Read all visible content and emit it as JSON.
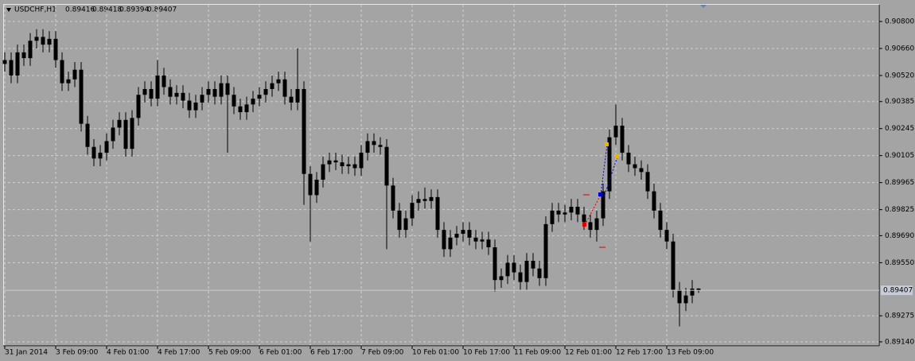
{
  "chart_data": {
    "type": "candlestick",
    "title": "USDCHF,H1",
    "header_values": [
      0.89416,
      0.89418,
      0.89394,
      0.89407
    ],
    "color": "#000000",
    "grid": true,
    "price_line": {
      "value": 0.89407,
      "label": "0.89407"
    },
    "xlim": [
      -0.25,
      137.375
    ],
    "xticks": [
      {
        "value": 0,
        "label": "31 Jan 2014"
      },
      {
        "value": 8,
        "label": "3 Feb 09:00"
      },
      {
        "value": 16,
        "label": "4 Feb 01:00"
      },
      {
        "value": 24,
        "label": "4 Feb 17:00"
      },
      {
        "value": 32,
        "label": "5 Feb 09:00"
      },
      {
        "value": 40,
        "label": "6 Feb 01:00"
      },
      {
        "value": 48,
        "label": "6 Feb 17:00"
      },
      {
        "value": 56,
        "label": "7 Feb 09:00"
      },
      {
        "value": 64,
        "label": "10 Feb 01:00"
      },
      {
        "value": 72,
        "label": "10 Feb 17:00"
      },
      {
        "value": 80,
        "label": "11 Feb 09:00"
      },
      {
        "value": 88,
        "label": "12 Feb 01:00"
      },
      {
        "value": 96,
        "label": "12 Feb 17:00"
      },
      {
        "value": 104,
        "label": "13 Feb 09:00"
      }
    ],
    "ylim": [
      0.89119,
      0.908865
    ],
    "yticks": [
      {
        "value": 0.908,
        "label": "0.90800"
      },
      {
        "value": 0.9066,
        "label": "0.90660"
      },
      {
        "value": 0.9052,
        "label": "0.90520"
      },
      {
        "value": 0.90385,
        "label": "0.90385"
      },
      {
        "value": 0.90245,
        "label": "0.90245"
      },
      {
        "value": 0.90105,
        "label": "0.90105"
      },
      {
        "value": 0.89965,
        "label": "0.89965"
      },
      {
        "value": 0.89825,
        "label": "0.89825"
      },
      {
        "value": 0.8969,
        "label": "0.89690"
      },
      {
        "value": 0.8955,
        "label": "0.89550"
      },
      {
        "value": 0.89275,
        "label": "0.89275"
      },
      {
        "value": 0.8914,
        "label": "0.89140"
      }
    ],
    "open": [
      0.9058,
      0.906,
      0.9052,
      0.9064,
      0.9061,
      0.907,
      0.9072,
      0.9068,
      0.9071,
      0.906,
      0.9048,
      0.905,
      0.9055,
      0.9027,
      0.9015,
      0.9009,
      0.9012,
      0.9018,
      0.9025,
      0.9029,
      0.9014,
      0.903,
      0.9042,
      0.9045,
      0.904,
      0.9052,
      0.9046,
      0.9041,
      0.9043,
      0.9039,
      0.9034,
      0.9038,
      0.9042,
      0.9045,
      0.9041,
      0.9048,
      0.9042,
      0.9036,
      0.9033,
      0.9037,
      0.904,
      0.9042,
      0.9045,
      0.9048,
      0.905,
      0.9041,
      0.9038,
      0.9045,
      0.9001,
      0.899,
      0.8998,
      0.9006,
      0.9008,
      0.9007,
      0.9005,
      0.9006,
      0.9004,
      0.9012,
      0.9018,
      0.9016,
      0.9015,
      0.8995,
      0.8982,
      0.8972,
      0.8978,
      0.8986,
      0.8988,
      0.8987,
      0.8989,
      0.8972,
      0.8962,
      0.8968,
      0.897,
      0.8972,
      0.8968,
      0.8966,
      0.8967,
      0.8963,
      0.8946,
      0.8948,
      0.8955,
      0.895,
      0.8945,
      0.8956,
      0.8952,
      0.8947,
      0.8975,
      0.8982,
      0.898,
      0.8981,
      0.8984,
      0.898,
      0.8976,
      0.8972,
      0.8978,
      0.8992,
      0.902,
      0.9026,
      0.9012,
      0.9006,
      0.9004,
      0.9002,
      0.8992,
      0.8982,
      0.8972,
      0.8966,
      0.8941,
      0.8934,
      0.8938,
      0.89416
    ],
    "high": [
      0.9064,
      0.9064,
      0.9068,
      0.9068,
      0.9074,
      0.9076,
      0.9076,
      0.9075,
      0.9075,
      0.9064,
      0.9054,
      0.9059,
      0.9059,
      0.9031,
      0.9019,
      0.9016,
      0.9022,
      0.9029,
      0.9033,
      0.9033,
      0.9034,
      0.9046,
      0.9049,
      0.9049,
      0.906,
      0.9056,
      0.905,
      0.9047,
      0.9047,
      0.9043,
      0.9042,
      0.9046,
      0.9049,
      0.9049,
      0.9052,
      0.9052,
      0.9046,
      0.904,
      0.9041,
      0.9044,
      0.9046,
      0.9049,
      0.9052,
      0.9054,
      0.9054,
      0.9045,
      0.9066,
      0.9049,
      0.9005,
      0.9002,
      0.901,
      0.9012,
      0.9012,
      0.9011,
      0.901,
      0.901,
      0.9016,
      0.9022,
      0.9022,
      0.902,
      0.9019,
      0.8999,
      0.8986,
      0.8982,
      0.899,
      0.8992,
      0.8994,
      0.8993,
      0.8993,
      0.8976,
      0.8972,
      0.8974,
      0.8976,
      0.8976,
      0.8972,
      0.8971,
      0.8971,
      0.8967,
      0.8952,
      0.8959,
      0.8959,
      0.8954,
      0.896,
      0.896,
      0.8956,
      0.8979,
      0.8986,
      0.8986,
      0.8985,
      0.8988,
      0.8988,
      0.8984,
      0.898,
      0.8982,
      0.8996,
      0.9024,
      0.9037,
      0.903,
      0.9016,
      0.901,
      0.9008,
      0.9006,
      0.8996,
      0.8986,
      0.8976,
      0.897,
      0.8945,
      0.8942,
      0.8946,
      0.89418
    ],
    "low": [
      0.9054,
      0.9048,
      0.9048,
      0.9057,
      0.9057,
      0.9066,
      0.9064,
      0.9064,
      0.9056,
      0.9044,
      0.9044,
      0.9046,
      0.9023,
      0.9011,
      0.9005,
      0.9005,
      0.9008,
      0.9014,
      0.9021,
      0.901,
      0.901,
      0.9026,
      0.9038,
      0.9036,
      0.9036,
      0.9042,
      0.9037,
      0.9037,
      0.9035,
      0.903,
      0.903,
      0.9034,
      0.9038,
      0.9037,
      0.9037,
      0.9012,
      0.9032,
      0.9029,
      0.9029,
      0.9033,
      0.9036,
      0.9038,
      0.9041,
      0.9044,
      0.9037,
      0.9034,
      0.9034,
      0.8985,
      0.8966,
      0.8986,
      0.8994,
      0.9002,
      0.9003,
      0.9001,
      0.9001,
      0.9,
      0.9,
      0.9008,
      0.9012,
      0.9011,
      0.8962,
      0.8978,
      0.8968,
      0.8968,
      0.8974,
      0.8982,
      0.8983,
      0.8983,
      0.8968,
      0.8958,
      0.8958,
      0.8964,
      0.8966,
      0.8964,
      0.8962,
      0.8962,
      0.8959,
      0.894,
      0.8942,
      0.8944,
      0.8946,
      0.8941,
      0.8941,
      0.8948,
      0.8943,
      0.8943,
      0.8971,
      0.8976,
      0.8976,
      0.8977,
      0.8976,
      0.8972,
      0.8968,
      0.8966,
      0.8974,
      0.8988,
      0.9016,
      0.9008,
      0.9002,
      0.9,
      0.8998,
      0.8988,
      0.8978,
      0.8968,
      0.8962,
      0.8937,
      0.8922,
      0.893,
      0.8934,
      0.89394
    ],
    "close": [
      0.906,
      0.9052,
      0.9064,
      0.9061,
      0.907,
      0.9072,
      0.9068,
      0.9071,
      0.906,
      0.9048,
      0.905,
      0.9055,
      0.9027,
      0.9015,
      0.9009,
      0.9012,
      0.9018,
      0.9025,
      0.9029,
      0.9014,
      0.903,
      0.9042,
      0.9045,
      0.904,
      0.9052,
      0.9046,
      0.9041,
      0.9043,
      0.9039,
      0.9034,
      0.9038,
      0.9042,
      0.9045,
      0.9041,
      0.9048,
      0.9042,
      0.9036,
      0.9033,
      0.9037,
      0.904,
      0.9042,
      0.9045,
      0.9048,
      0.905,
      0.9041,
      0.9038,
      0.9045,
      0.9001,
      0.899,
      0.8998,
      0.9006,
      0.9008,
      0.9007,
      0.9005,
      0.9006,
      0.9004,
      0.9012,
      0.9018,
      0.9016,
      0.9015,
      0.8995,
      0.8982,
      0.8972,
      0.8978,
      0.8986,
      0.8988,
      0.8987,
      0.8989,
      0.8972,
      0.8962,
      0.8968,
      0.897,
      0.8972,
      0.8968,
      0.8966,
      0.8967,
      0.8963,
      0.8946,
      0.8948,
      0.8955,
      0.895,
      0.8945,
      0.8956,
      0.8952,
      0.8947,
      0.8975,
      0.8982,
      0.898,
      0.8981,
      0.8984,
      0.898,
      0.8976,
      0.8972,
      0.8978,
      0.8992,
      0.902,
      0.9026,
      0.9012,
      0.9006,
      0.9004,
      0.9002,
      0.8992,
      0.8982,
      0.8972,
      0.8966,
      0.8941,
      0.8934,
      0.8938,
      0.89416,
      0.89407
    ]
  }
}
